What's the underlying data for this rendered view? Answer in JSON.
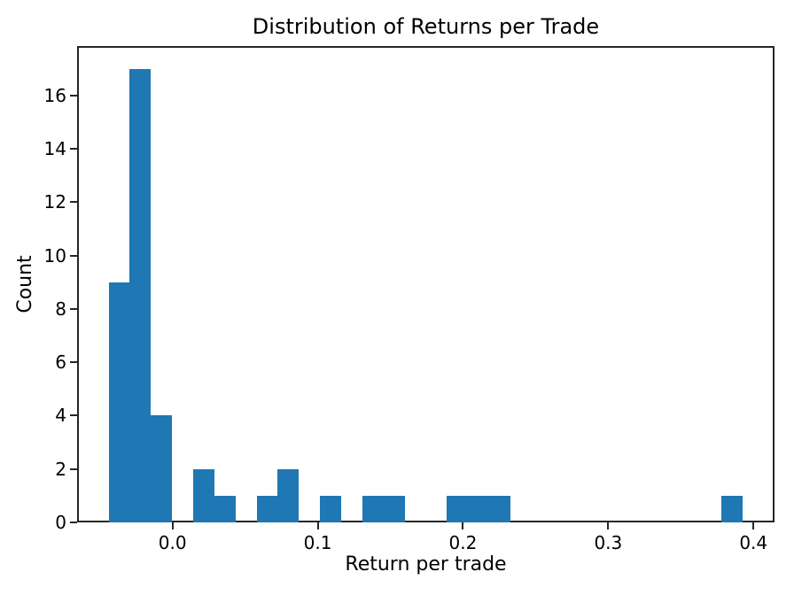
{
  "chart_data": {
    "type": "bar",
    "variant": "histogram",
    "title": "Distribution of Returns per Trade",
    "xlabel": "Return per trade",
    "ylabel": "Count",
    "bar_color": "#1f77b4",
    "axis_color": "#262626",
    "text_color": "#000000",
    "grid": false,
    "legend": false,
    "xlim": [
      -0.0657,
      0.4145
    ],
    "ylim": [
      0,
      17.85
    ],
    "x_ticks": [
      {
        "value": 0.0,
        "label": "0.0"
      },
      {
        "value": 0.1,
        "label": "0.1"
      },
      {
        "value": 0.2,
        "label": "0.2"
      },
      {
        "value": 0.3,
        "label": "0.3"
      },
      {
        "value": 0.4,
        "label": "0.4"
      }
    ],
    "y_ticks": [
      {
        "value": 0,
        "label": "0"
      },
      {
        "value": 2,
        "label": "2"
      },
      {
        "value": 4,
        "label": "4"
      },
      {
        "value": 6,
        "label": "6"
      },
      {
        "value": 8,
        "label": "8"
      },
      {
        "value": 10,
        "label": "10"
      },
      {
        "value": 12,
        "label": "12"
      },
      {
        "value": 14,
        "label": "14"
      },
      {
        "value": 16,
        "label": "16"
      }
    ],
    "bin_edges": [
      -0.0439,
      -0.0294,
      -0.0148,
      -0.0002,
      0.0143,
      0.0289,
      0.0434,
      0.058,
      0.0725,
      0.0871,
      0.1016,
      0.1162,
      0.1307,
      0.1453,
      0.1598,
      0.1744,
      0.189,
      0.2035,
      0.2181,
      0.2326,
      0.2472,
      0.2617,
      0.2763,
      0.2908,
      0.3054,
      0.3199,
      0.3345,
      0.349,
      0.3636,
      0.3781,
      0.3927
    ],
    "counts": [
      9,
      17,
      4,
      0,
      2,
      1,
      0,
      1,
      2,
      0,
      1,
      0,
      1,
      1,
      0,
      0,
      1,
      1,
      1,
      0,
      0,
      0,
      0,
      0,
      0,
      0,
      0,
      0,
      0,
      1
    ]
  }
}
